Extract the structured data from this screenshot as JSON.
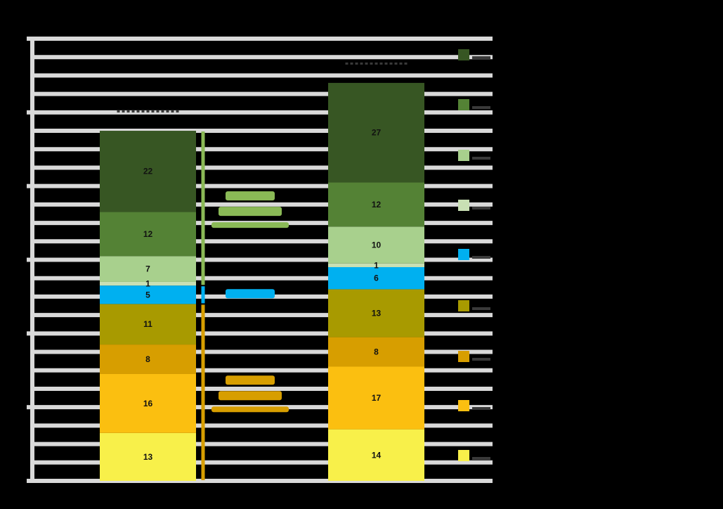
{
  "chart_data": {
    "type": "bar",
    "stacked": true,
    "title": "",
    "xlabel": "",
    "ylabel": "",
    "ylim": [
      0,
      120
    ],
    "grid": true,
    "legend_position": "right",
    "categories": [
      "",
      ""
    ],
    "segment_colors": [
      "#f8f04a",
      "#fbbf10",
      "#d79e00",
      "#a89a00",
      "#00b0f0",
      "#c9e0b4",
      "#a8d08d",
      "#548235",
      "#375623"
    ],
    "series": [
      {
        "values": [
          13,
          14
        ],
        "color": "#f8f04a"
      },
      {
        "values": [
          16,
          17
        ],
        "color": "#fbbf10"
      },
      {
        "values": [
          8,
          8
        ],
        "color": "#d79e00"
      },
      {
        "values": [
          11,
          13
        ],
        "color": "#a89a00"
      },
      {
        "values": [
          5,
          6
        ],
        "color": "#00b0f0"
      },
      {
        "values": [
          1,
          1
        ],
        "color": "#c9e0b4"
      },
      {
        "values": [
          7,
          10
        ],
        "color": "#a8d08d"
      },
      {
        "values": [
          12,
          12
        ],
        "color": "#548235"
      },
      {
        "values": [
          22,
          27
        ],
        "color": "#375623"
      }
    ],
    "brackets": [
      {
        "color": "#8ab956"
      },
      {
        "color": "#00b0f0"
      },
      {
        "color": "#d79e00"
      }
    ]
  }
}
